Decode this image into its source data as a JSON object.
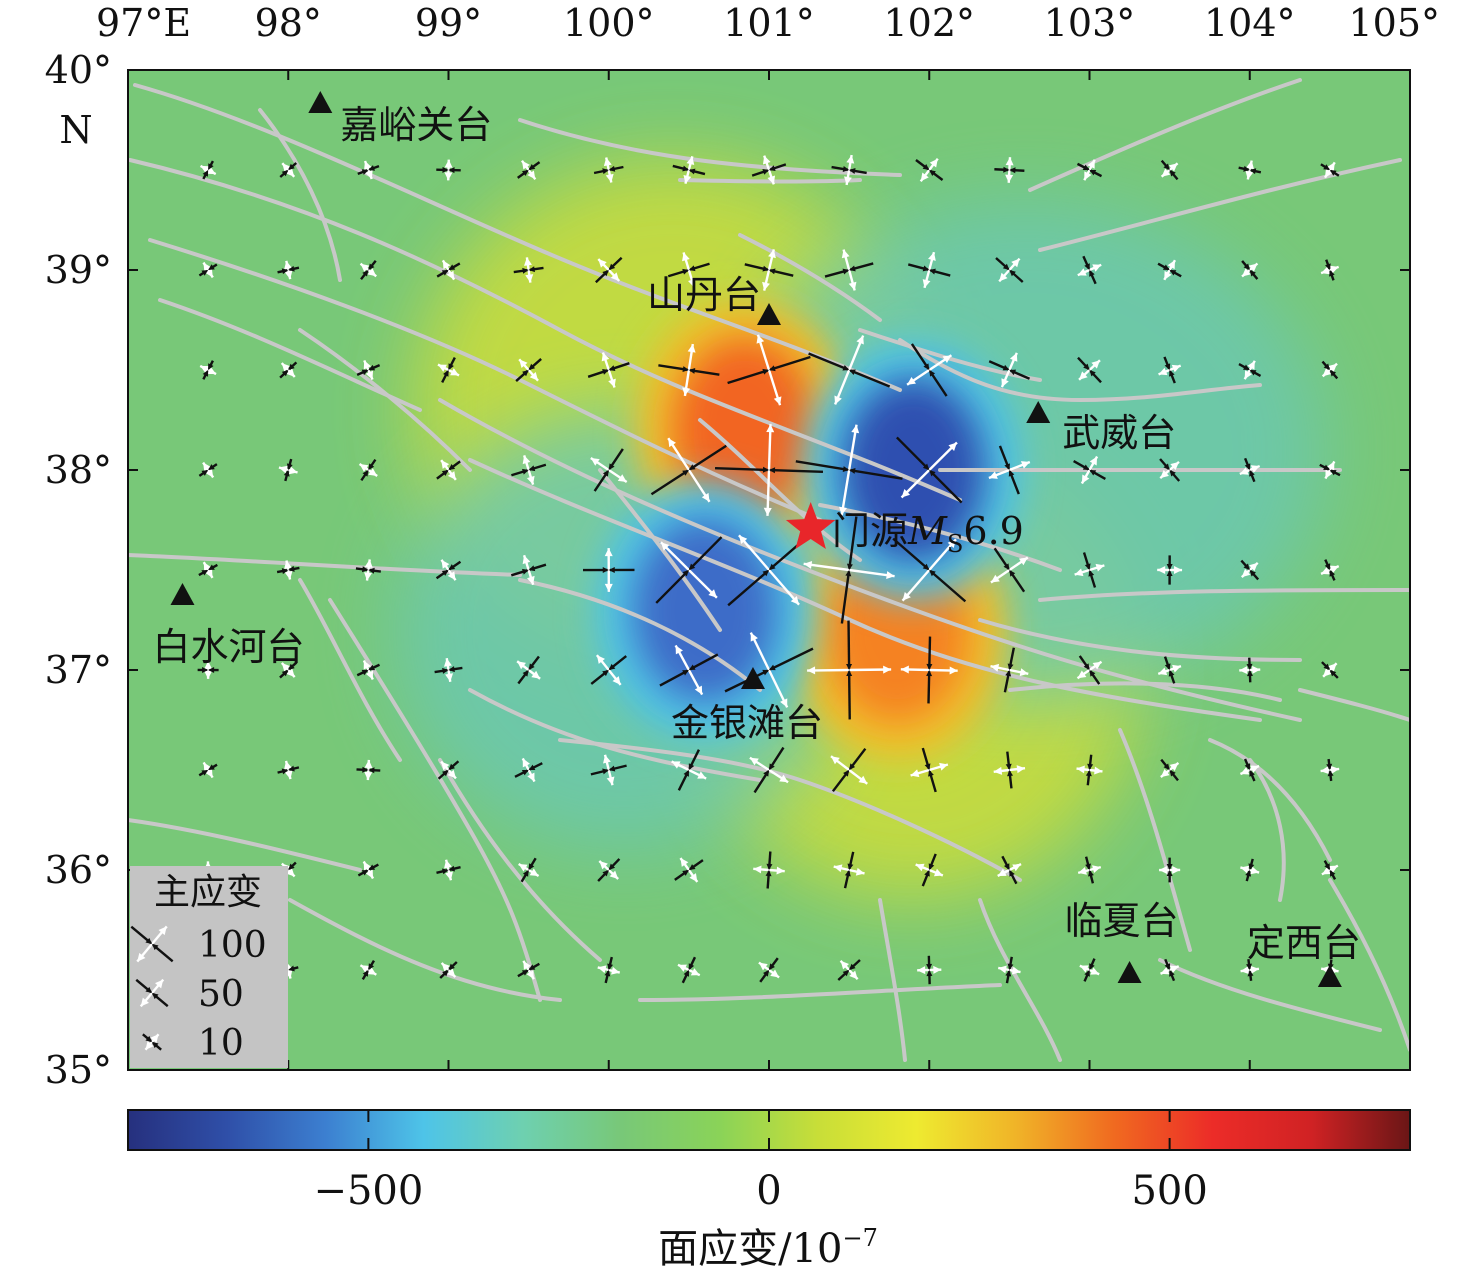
{
  "map": {
    "lon_labels": [
      "97°E",
      "98°",
      "99°",
      "100°",
      "101°",
      "102°",
      "103°",
      "104°",
      "105°"
    ],
    "lat_labels": [
      "40°",
      "39°",
      "38°",
      "37°",
      "36°",
      "35°"
    ],
    "north_label": "N",
    "lon_range": [
      97,
      105
    ],
    "lat_range": [
      35,
      40
    ]
  },
  "epicenter": {
    "name": "门源",
    "mag_symbol": "M",
    "mag_subscript": "S",
    "mag_value": "6.9",
    "lon": 101.26,
    "lat": 37.71,
    "color": "#e8262a"
  },
  "stations": [
    {
      "name": "嘉峪关台",
      "lon": 98.2,
      "lat": 39.83
    },
    {
      "name": "山丹台",
      "lon": 101.0,
      "lat": 38.77
    },
    {
      "name": "武威台",
      "lon": 102.68,
      "lat": 38.28
    },
    {
      "name": "白水河台",
      "lon": 97.34,
      "lat": 37.37
    },
    {
      "name": "金银滩台",
      "lon": 100.9,
      "lat": 36.95
    },
    {
      "name": "临夏台",
      "lon": 103.25,
      "lat": 35.48
    },
    {
      "name": "定西台",
      "lon": 104.5,
      "lat": 35.46
    }
  ],
  "legend": {
    "title": "主应变",
    "items": [
      {
        "label": "100",
        "value": 100
      },
      {
        "label": "50",
        "value": 50
      },
      {
        "label": "10",
        "value": 10
      }
    ]
  },
  "colorbar": {
    "label": "面应变/10",
    "label_exponent": "−7",
    "range": [
      -800,
      800
    ],
    "ticks": [
      {
        "value": -500,
        "label": "−500"
      },
      {
        "value": 0,
        "label": "0"
      },
      {
        "value": 500,
        "label": "500"
      }
    ],
    "colors": [
      "#26307e",
      "#2f4fa8",
      "#3c7fd0",
      "#4ec4e8",
      "#6ed0b0",
      "#78c878",
      "#8ad358",
      "#c8de38",
      "#eeea30",
      "#f0b428",
      "#f06a20",
      "#ec2c28",
      "#d02224",
      "#6a1616"
    ]
  },
  "dilatation_field": {
    "background": "#78c878",
    "lobes": [
      {
        "sign": "positive",
        "lon": 100.85,
        "lat": 38.2,
        "peak": 550,
        "color": "#f26522"
      },
      {
        "sign": "positive",
        "lon": 101.8,
        "lat": 37.2,
        "peak": 480,
        "color": "#f58220"
      },
      {
        "sign": "negative",
        "lon": 101.9,
        "lat": 38.0,
        "peak": -560,
        "color": "#2f4fb0"
      },
      {
        "sign": "negative",
        "lon": 100.6,
        "lat": 37.3,
        "peak": -420,
        "color": "#3d6cc8"
      }
    ]
  }
}
